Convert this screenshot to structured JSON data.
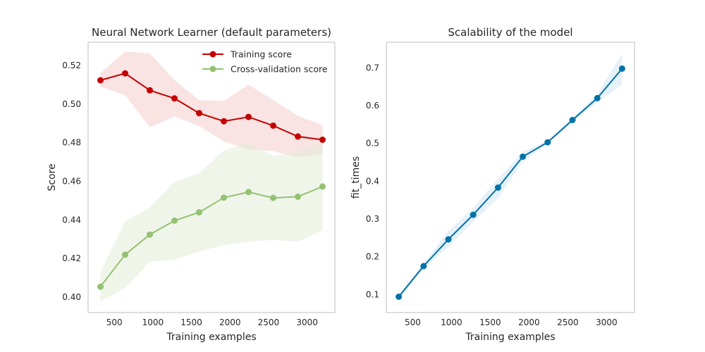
{
  "chart_data": [
    {
      "type": "line",
      "title": "Neural Network Learner (default parameters)",
      "xlabel": "Training examples",
      "ylabel": "Score",
      "xlim": [
        160,
        3360
      ],
      "ylim": [
        0.392,
        0.532
      ],
      "xticks": [
        500,
        1000,
        1500,
        2000,
        2500,
        3000
      ],
      "xtick_labels": [
        "500",
        "1000",
        "1500",
        "2000",
        "2500",
        "3000"
      ],
      "yticks": [
        0.4,
        0.42,
        0.44,
        0.46,
        0.48,
        0.5,
        0.52
      ],
      "ytick_labels": [
        "0.40",
        "0.42",
        "0.44",
        "0.46",
        "0.48",
        "0.50",
        "0.52"
      ],
      "grid": false,
      "legend_position": "top-right",
      "x": [
        320,
        640,
        960,
        1280,
        1600,
        1920,
        2240,
        2560,
        2880,
        3200
      ],
      "series": [
        {
          "name": "Training score",
          "color": "#c40000",
          "band_color": "#f4cccc",
          "values": [
            0.5123,
            0.5159,
            0.5071,
            0.5029,
            0.4953,
            0.4911,
            0.4933,
            0.4888,
            0.4832,
            0.4815
          ],
          "band_lower": [
            0.509,
            0.5046,
            0.488,
            0.4935,
            0.4886,
            0.4806,
            0.4765,
            0.4756,
            0.4725,
            0.474
          ],
          "band_upper": [
            0.516,
            0.5272,
            0.5262,
            0.5124,
            0.502,
            0.5016,
            0.5101,
            0.502,
            0.4939,
            0.489
          ]
        },
        {
          "name": "Cross-validation score",
          "color": "#94c273",
          "band_color": "#e3edd9",
          "values": [
            0.4054,
            0.422,
            0.4324,
            0.4396,
            0.4439,
            0.4515,
            0.4544,
            0.4514,
            0.452,
            0.4573
          ],
          "band_lower": [
            0.3976,
            0.4048,
            0.4182,
            0.4194,
            0.4236,
            0.427,
            0.4287,
            0.4296,
            0.4287,
            0.4346
          ],
          "band_upper": [
            0.4132,
            0.4392,
            0.4466,
            0.4598,
            0.4642,
            0.476,
            0.4801,
            0.4732,
            0.4753,
            0.48
          ]
        }
      ]
    },
    {
      "type": "line",
      "title": "Scalability of the model",
      "xlabel": "Training examples",
      "ylabel": "fit_times",
      "xlim": [
        160,
        3360
      ],
      "ylim": [
        0.052,
        0.768
      ],
      "xticks": [
        500,
        1000,
        1500,
        2000,
        2500,
        3000
      ],
      "xtick_labels": [
        "500",
        "1000",
        "1500",
        "2000",
        "2500",
        "3000"
      ],
      "yticks": [
        0.1,
        0.2,
        0.3,
        0.4,
        0.5,
        0.6,
        0.7
      ],
      "ytick_labels": [
        "0.1",
        "0.2",
        "0.3",
        "0.4",
        "0.5",
        "0.6",
        "0.7"
      ],
      "grid": false,
      "x": [
        320,
        640,
        960,
        1280,
        1600,
        1920,
        2240,
        2560,
        2880,
        3200
      ],
      "series": [
        {
          "color": "#0072a8",
          "band_color": "#d3e5f2",
          "values": [
            0.094,
            0.175,
            0.246,
            0.311,
            0.383,
            0.465,
            0.503,
            0.562,
            0.62,
            0.698
          ],
          "band_lower": [
            0.088,
            0.168,
            0.226,
            0.293,
            0.355,
            0.452,
            0.499,
            0.557,
            0.609,
            0.656
          ],
          "band_upper": [
            0.1,
            0.183,
            0.268,
            0.329,
            0.407,
            0.478,
            0.507,
            0.567,
            0.631,
            0.738
          ]
        }
      ]
    }
  ]
}
